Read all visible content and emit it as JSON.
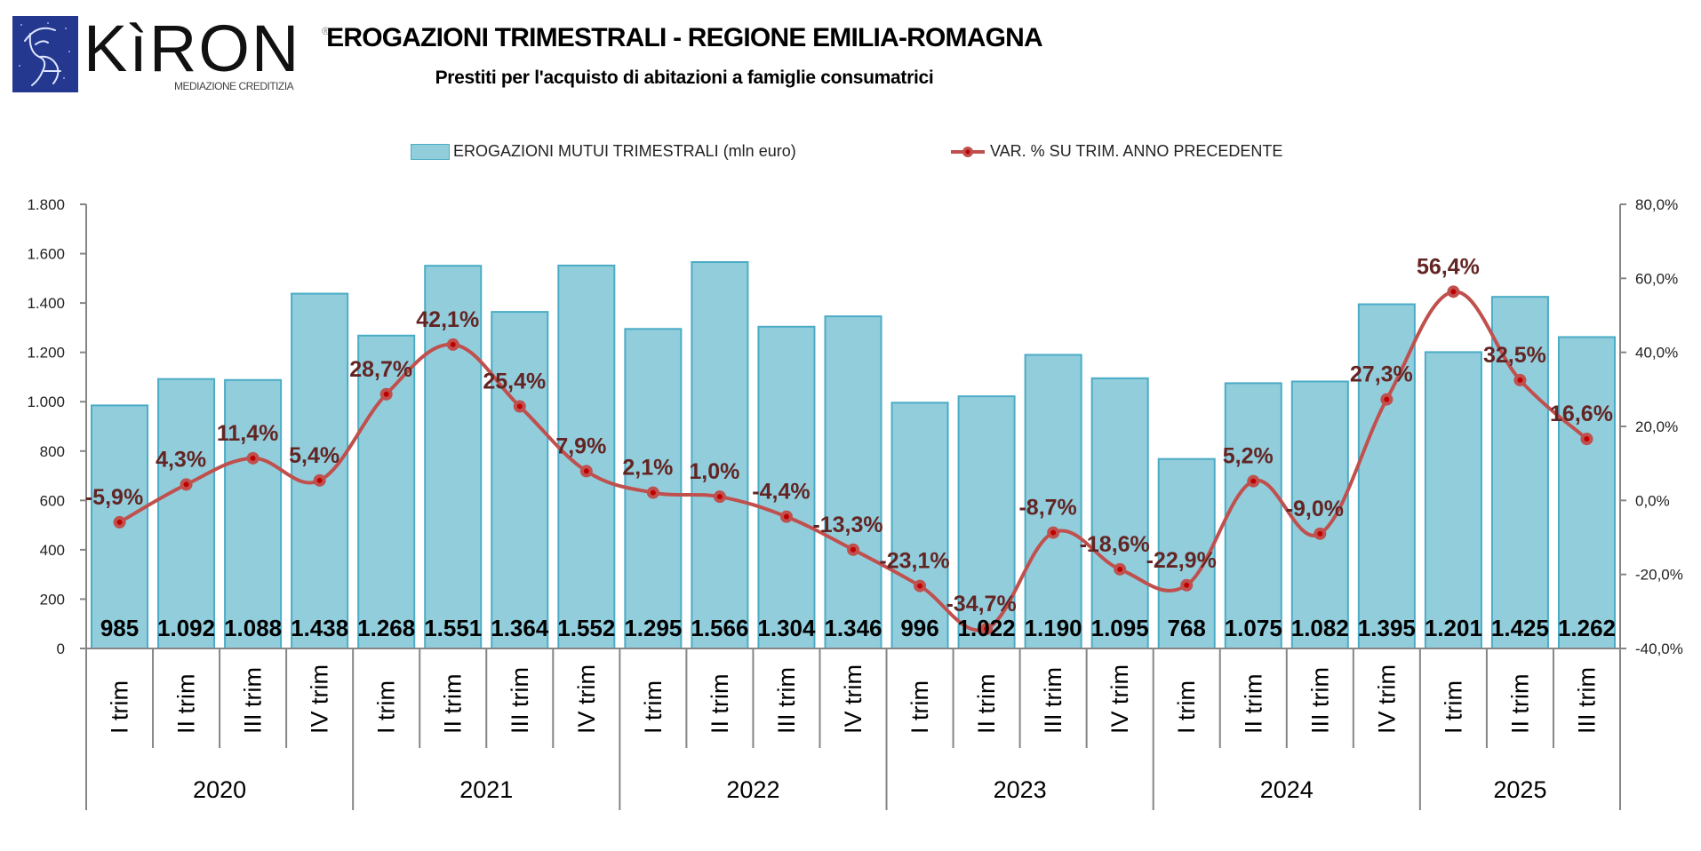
{
  "brand": {
    "name": "KìRON",
    "registered": "®",
    "tagline": "MEDIAZIONE CREDITIZIA",
    "color": "#24388f"
  },
  "chart_data": {
    "type": "bar+line",
    "title": "EROGAZIONI TRIMESTRALI - REGIONE EMILIA-ROMAGNA",
    "subtitle": "Prestiti per l'acquisto di abitazioni a famiglie consumatrici",
    "legend": {
      "placement": "top-center",
      "bar_label": "EROGAZIONI MUTUI TRIMESTRALI (mln euro)",
      "line_label": "VAR. % SU TRIM. ANNO PRECEDENTE"
    },
    "colors": {
      "bar_fill": "#92cddc",
      "bar_stroke": "#4bacc6",
      "line": "#c0504d",
      "marker_center": "#c00000",
      "pct_label": "#632523",
      "axis": "#868686"
    },
    "left_axis": {
      "ylim": [
        0,
        1800
      ],
      "ticks": [
        0,
        200,
        400,
        600,
        800,
        1000,
        1200,
        1400,
        1600,
        1800
      ],
      "tick_labels": [
        "0",
        "200",
        "400",
        "600",
        "800",
        "1.000",
        "1.200",
        "1.400",
        "1.600",
        "1.800"
      ]
    },
    "right_axis": {
      "ylim": [
        -40,
        80
      ],
      "ticks": [
        -40,
        -20,
        0,
        20,
        40,
        60,
        80
      ],
      "tick_labels": [
        "-40,0%",
        "-20,0%",
        "0,0%",
        "20,0%",
        "40,0%",
        "60,0%",
        "80,0%"
      ]
    },
    "years": [
      {
        "label": "2020",
        "count": 4
      },
      {
        "label": "2021",
        "count": 4
      },
      {
        "label": "2022",
        "count": 4
      },
      {
        "label": "2023",
        "count": 4
      },
      {
        "label": "2024",
        "count": 4
      },
      {
        "label": "2025",
        "count": 3
      }
    ],
    "categories": [
      "I trim",
      "II trim",
      "III trim",
      "IV trim",
      "I trim",
      "II trim",
      "III trim",
      "IV trim",
      "I trim",
      "II trim",
      "III trim",
      "IV trim",
      "I trim",
      "II trim",
      "III trim",
      "IV trim",
      "I trim",
      "II trim",
      "III trim",
      "IV trim",
      "I trim",
      "II trim",
      "III trim"
    ],
    "series": [
      {
        "name": "EROGAZIONI MUTUI TRIMESTRALI (mln euro)",
        "type": "bar",
        "axis": "left",
        "values": [
          985,
          1092,
          1088,
          1438,
          1268,
          1551,
          1364,
          1552,
          1295,
          1566,
          1304,
          1346,
          996,
          1022,
          1190,
          1095,
          768,
          1075,
          1082,
          1395,
          1201,
          1425,
          1262
        ],
        "labels": [
          "985",
          "1.092",
          "1.088",
          "1.438",
          "1.268",
          "1.551",
          "1.364",
          "1.552",
          "1.295",
          "1.566",
          "1.304",
          "1.346",
          "996",
          "1.022",
          "1.190",
          "1.095",
          "768",
          "1.075",
          "1.082",
          "1.395",
          "1.201",
          "1.425",
          "1.262"
        ]
      },
      {
        "name": "VAR. % SU TRIM. ANNO PRECEDENTE",
        "type": "line",
        "axis": "right",
        "smooth": true,
        "values": [
          -5.9,
          4.3,
          11.4,
          5.4,
          28.7,
          42.1,
          25.4,
          7.9,
          2.1,
          1.0,
          -4.4,
          -13.3,
          -23.1,
          -34.7,
          -8.7,
          -18.6,
          -22.9,
          5.2,
          -9.0,
          27.3,
          56.4,
          32.5,
          16.6
        ],
        "labels": [
          "-5,9%",
          "4,3%",
          "11,4%",
          "5,4%",
          "28,7%",
          "42,1%",
          "25,4%",
          "7,9%",
          "2,1%",
          "1,0%",
          "-4,4%",
          "-13,3%",
          "-23,1%",
          "-34,7%",
          "-8,7%",
          "-18,6%",
          "-22,9%",
          "5,2%",
          "-9,0%",
          "27,3%",
          "56,4%",
          "32,5%",
          "16,6%"
        ]
      }
    ]
  }
}
